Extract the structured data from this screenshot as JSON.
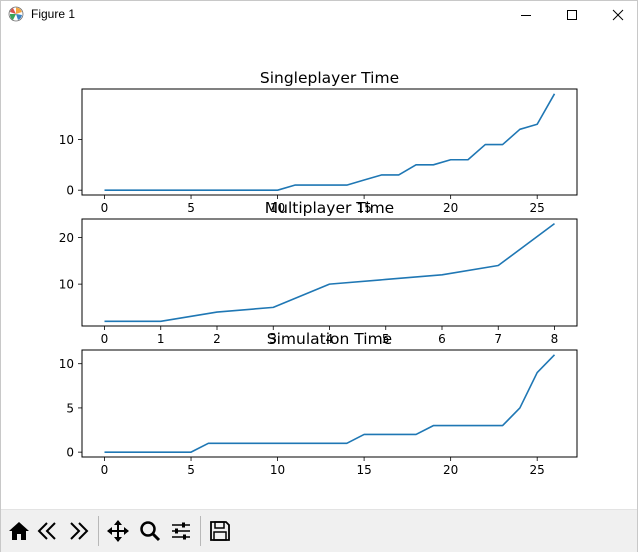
{
  "window": {
    "title": "Figure 1"
  },
  "toolbar": {
    "buttons": [
      {
        "name": "home",
        "icon": "home-icon"
      },
      {
        "name": "back",
        "icon": "back-arrow-icon"
      },
      {
        "name": "forward",
        "icon": "forward-arrow-icon"
      },
      {
        "name": "pan",
        "icon": "move-icon"
      },
      {
        "name": "zoom",
        "icon": "magnifier-icon"
      },
      {
        "name": "configure",
        "icon": "sliders-icon"
      },
      {
        "name": "save",
        "icon": "floppy-disk-icon"
      }
    ]
  },
  "colors": {
    "line": "#1f77b4",
    "axes": "#000000"
  },
  "chart_data": [
    {
      "type": "line",
      "title": "Singleplayer Time",
      "x": [
        0,
        1,
        2,
        3,
        4,
        5,
        6,
        7,
        8,
        9,
        10,
        11,
        12,
        13,
        14,
        15,
        16,
        17,
        18,
        19,
        20,
        21,
        22,
        23,
        24,
        25,
        26
      ],
      "series": [
        {
          "values": [
            0,
            0,
            0,
            0,
            0,
            0,
            0,
            0,
            0,
            0,
            0,
            1,
            1,
            1,
            1,
            2,
            3,
            3,
            5,
            5,
            6,
            6,
            9,
            9,
            12,
            13,
            19
          ]
        }
      ],
      "xticks": [
        0,
        5,
        10,
        15,
        20,
        25
      ],
      "yticks": [
        0,
        10
      ],
      "xlim": [
        -1.3,
        27.3
      ],
      "ylim": [
        -0.95,
        19.95
      ]
    },
    {
      "type": "line",
      "title": "Multiplayer Time",
      "x": [
        0,
        1,
        2,
        3,
        4,
        5,
        6,
        7,
        8
      ],
      "series": [
        {
          "values": [
            2,
            2,
            4,
            5,
            10,
            11,
            12,
            14,
            23
          ]
        }
      ],
      "xticks": [
        0,
        1,
        2,
        3,
        4,
        5,
        6,
        7,
        8
      ],
      "yticks": [
        10,
        20
      ],
      "xlim": [
        -0.4,
        8.4
      ],
      "ylim": [
        1.0,
        24.0
      ]
    },
    {
      "type": "line",
      "title": "Simulation Time",
      "x": [
        0,
        1,
        2,
        3,
        4,
        5,
        6,
        7,
        8,
        9,
        10,
        11,
        12,
        13,
        14,
        15,
        16,
        17,
        18,
        19,
        20,
        21,
        22,
        23,
        24,
        25,
        26
      ],
      "series": [
        {
          "values": [
            0,
            0,
            0,
            0,
            0,
            0,
            1,
            1,
            1,
            1,
            1,
            1,
            1,
            1,
            1,
            2,
            2,
            2,
            2,
            3,
            3,
            3,
            3,
            3,
            5,
            9,
            11
          ]
        }
      ],
      "xticks": [
        0,
        5,
        10,
        15,
        20,
        25
      ],
      "yticks": [
        0,
        5,
        10
      ],
      "xlim": [
        -1.3,
        27.3
      ],
      "ylim": [
        -0.55,
        11.55
      ]
    }
  ]
}
